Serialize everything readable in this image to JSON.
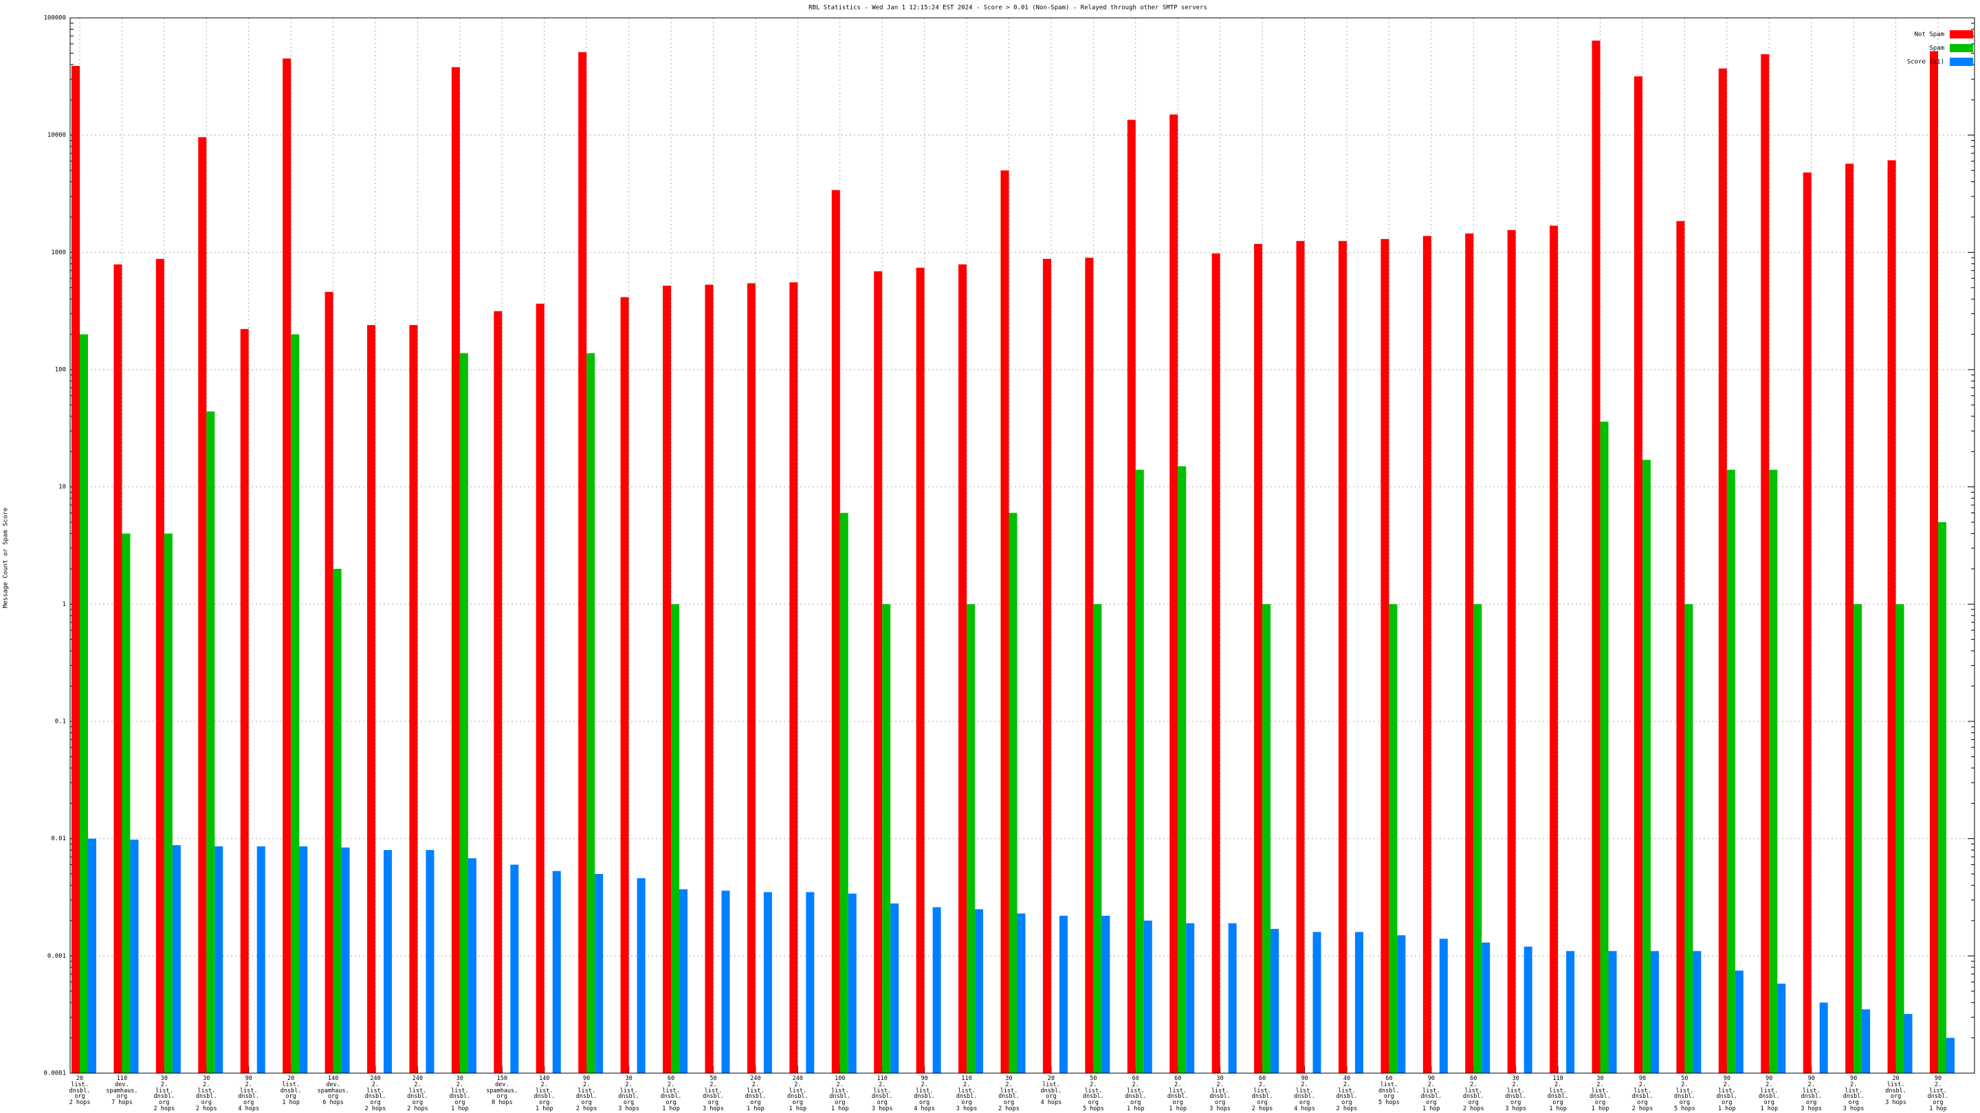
{
  "chart_data": {
    "type": "bar",
    "title": "RBL Statistics - Wed Jan  1 12:15:24 EST 2024 - Score > 0.01 (Non-Spam) - Relayed through other SMTP servers",
    "y_label": "Message Count or Spam Score",
    "log_scale": true,
    "grid": true,
    "legend": "top-right",
    "ylim": [
      0.0001,
      100000
    ],
    "yticks": [
      0.0001,
      0.001,
      0.01,
      0.1,
      1,
      10,
      100,
      1000,
      10000,
      100000
    ],
    "categories": [
      "20\nlist.\ndnsbl.\norg\n2 hops",
      "110\ndev.\nspamhaus.\norg\n7 hops",
      "30\n2.\nlist.\ndnsbl.\norg\n2 hops",
      "30\n2.\nlist.\ndnsbl.\norg\n2 hops",
      "90\n2.\nlist.\ndnsbl.\norg\n4 hops",
      "20\nlist.\ndnsbl.\norg\n1 hop",
      "140\ndev.\nspamhaus.\norg\n6 hops",
      "240\n2.\nlist.\ndnsbl.\norg\n2 hops",
      "240\n2.\nlist.\ndnsbl.\norg\n2 hops",
      "30\n2.\nlist.\ndnsbl.\norg\n1 hop",
      "150\ndev.\nspamhaus.\norg\n8 hops",
      "140\n2.\nlist.\ndnsbl.\norg\n1 hop",
      "90\n2.\nlist.\ndnsbl.\norg\n2 hops",
      "30\n2.\nlist.\ndnsbl.\norg\n3 hops",
      "60\n2.\nlist.\ndnsbl.\norg\n1 hop",
      "50\n2.\nlist.\ndnsbl.\norg\n3 hops",
      "240\n2.\nlist.\ndnsbl.\norg\n1 hop",
      "240\n2.\nlist.\ndnsbl.\norg\n1 hop",
      "100\n2.\nlist.\ndnsbl.\norg\n1 hop",
      "110\n2.\nlist.\ndnsbl.\norg\n3 hops",
      "90\n2.\nlist.\ndnsbl.\norg\n4 hops",
      "110\n2.\nlist.\ndnsbl.\norg\n3 hops",
      "30\n2.\nlist.\ndnsbl.\norg\n2 hops",
      "20\nlist.\ndnsbl.\norg\n4 hops",
      "50\n2.\nlist.\ndnsbl.\norg\n5 hops",
      "60\n2.\nlist.\ndnsbl.\norg\n1 hop",
      "60\n2.\nlist.\ndnsbl.\norg\n1 hop",
      "30\n2.\nlist.\ndnsbl.\norg\n3 hops",
      "60\n2.\nlist.\ndnsbl.\norg\n2 hops",
      "90\n2.\nlist.\ndnsbl.\norg\n4 hops",
      "40\n2.\nlist.\ndnsbl.\norg\n2 hops",
      "60\nlist.\ndnsbl.\norg\n5 hops",
      "90\n2.\nlist.\ndnsbl.\norg\n1 hop",
      "60\n2.\nlist.\ndnsbl.\norg\n2 hops",
      "30\n2.\nlist.\ndnsbl.\norg\n3 hops",
      "110\n2.\nlist.\ndnsbl.\norg\n1 hop",
      "30\n2.\nlist.\ndnsbl.\norg\n1 hop",
      "90\n2.\nlist.\ndnsbl.\norg\n2 hops",
      "50\n2.\nlist.\ndnsbl.\norg\n5 hops",
      "90\n2.\nlist.\ndnsbl.\norg\n1 hop",
      "90\n2.\nlist.\ndnsbl.\norg\n1 hop",
      "90\n2.\nlist.\ndnsbl.\norg\n3 hops",
      "90\n2.\nlist.\ndnsbl.\norg\n3 hops",
      "20\nlist.\ndnsbl.\norg\n3 hops",
      "90\n2.\nlist.\ndnsbl.\norg\n1 hop"
    ],
    "series": [
      {
        "name": "Not Spam",
        "color": "#ff0000",
        "values": [
          38900,
          790,
          880,
          9600,
          222,
          45000,
          460,
          240,
          240,
          38000,
          315,
          365,
          51000,
          415,
          520,
          530,
          545,
          555,
          3400,
          690,
          740,
          790,
          5000,
          880,
          900,
          13500,
          15000,
          980,
          1180,
          1250,
          1250,
          1300,
          1380,
          1450,
          1550,
          1690,
          64000,
          31700,
          1850,
          37000,
          49000,
          4800,
          5700,
          6100,
          52000
        ]
      },
      {
        "name": "Spam",
        "color": "#00c000",
        "values": [
          200,
          4,
          4,
          44,
          null,
          200,
          2,
          null,
          null,
          138,
          null,
          null,
          138,
          null,
          1,
          null,
          null,
          null,
          6,
          1,
          null,
          1,
          6,
          null,
          1,
          14,
          15,
          null,
          1,
          null,
          null,
          1,
          null,
          1,
          null,
          null,
          36,
          17,
          1,
          14,
          14,
          null,
          1,
          1,
          5
        ]
      },
      {
        "name": "Score (x1)",
        "color": "#0080ff",
        "values": [
          0.01,
          0.0098,
          0.0088,
          0.0086,
          0.0086,
          0.0086,
          0.0084,
          0.008,
          0.008,
          0.0068,
          0.006,
          0.0053,
          0.005,
          0.0046,
          0.0037,
          0.0036,
          0.0035,
          0.0035,
          0.0034,
          0.0028,
          0.0026,
          0.0025,
          0.0023,
          0.0022,
          0.0022,
          0.002,
          0.0019,
          0.0019,
          0.0017,
          0.0016,
          0.0016,
          0.0015,
          0.0014,
          0.0013,
          0.0012,
          0.0011,
          0.0011,
          0.0011,
          0.0011,
          0.00075,
          0.00058,
          0.0004,
          0.00035,
          0.00032,
          0.0002
        ]
      }
    ]
  }
}
